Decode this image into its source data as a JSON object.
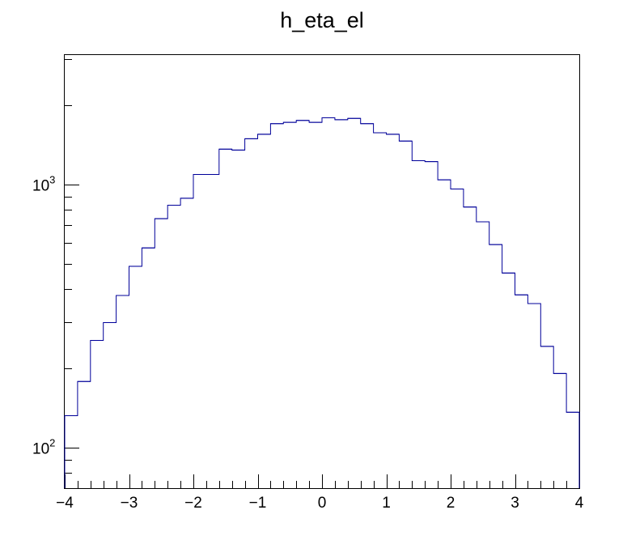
{
  "chart_data": {
    "type": "histogram",
    "title": "h_eta_el",
    "xlabel": "",
    "ylabel": "",
    "xlim": [
      -4,
      4
    ],
    "ylim": [
      70,
      3100
    ],
    "y_log_scale": true,
    "grid": false,
    "legend": "none",
    "line_color": "#000099",
    "bins": {
      "edges_start": -4,
      "bin_width": 0.2,
      "counts": [
        132,
        178,
        255,
        298,
        378,
        488,
        573,
        740,
        833,
        885,
        1090,
        1090,
        1360,
        1350,
        1490,
        1550,
        1700,
        1720,
        1750,
        1720,
        1790,
        1760,
        1780,
        1700,
        1570,
        1550,
        1460,
        1230,
        1220,
        1040,
        960,
        820,
        720,
        590,
        460,
        380,
        352,
        242,
        191,
        136
      ]
    },
    "x_ticks": [
      "−4",
      "−3",
      "−2",
      "−1",
      "0",
      "1",
      "2",
      "3",
      "4"
    ],
    "y_tick_labels": [
      {
        "base": "10",
        "exp": "2",
        "value": 100
      },
      {
        "base": "10",
        "exp": "3",
        "value": 1000
      }
    ]
  }
}
